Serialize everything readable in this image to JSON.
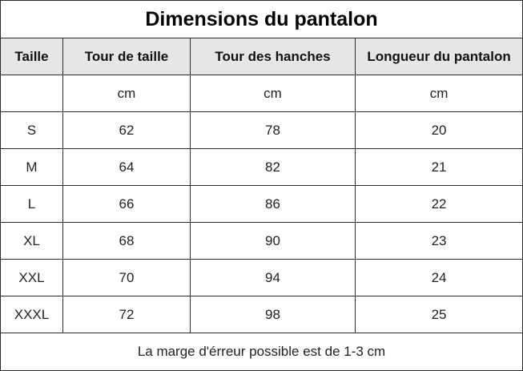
{
  "title": "Dimensions du pantalon",
  "columns": [
    "Taille",
    "Tour de taille",
    "Tour des hanches",
    "Longueur du pantalon"
  ],
  "units": [
    "",
    "cm",
    "cm",
    "cm"
  ],
  "rows": [
    [
      "S",
      "62",
      "78",
      "20"
    ],
    [
      "M",
      "64",
      "82",
      "21"
    ],
    [
      "L",
      "66",
      "86",
      "22"
    ],
    [
      "XL",
      "68",
      "90",
      "23"
    ],
    [
      "XXL",
      "70",
      "94",
      "24"
    ],
    [
      "XXXL",
      "72",
      "98",
      "25"
    ]
  ],
  "note": "La marge d'érreur possible est de 1-3 cm",
  "colors": {
    "border": "#2b2b2b",
    "header_background": "#e6e6e6",
    "background": "#ffffff"
  }
}
